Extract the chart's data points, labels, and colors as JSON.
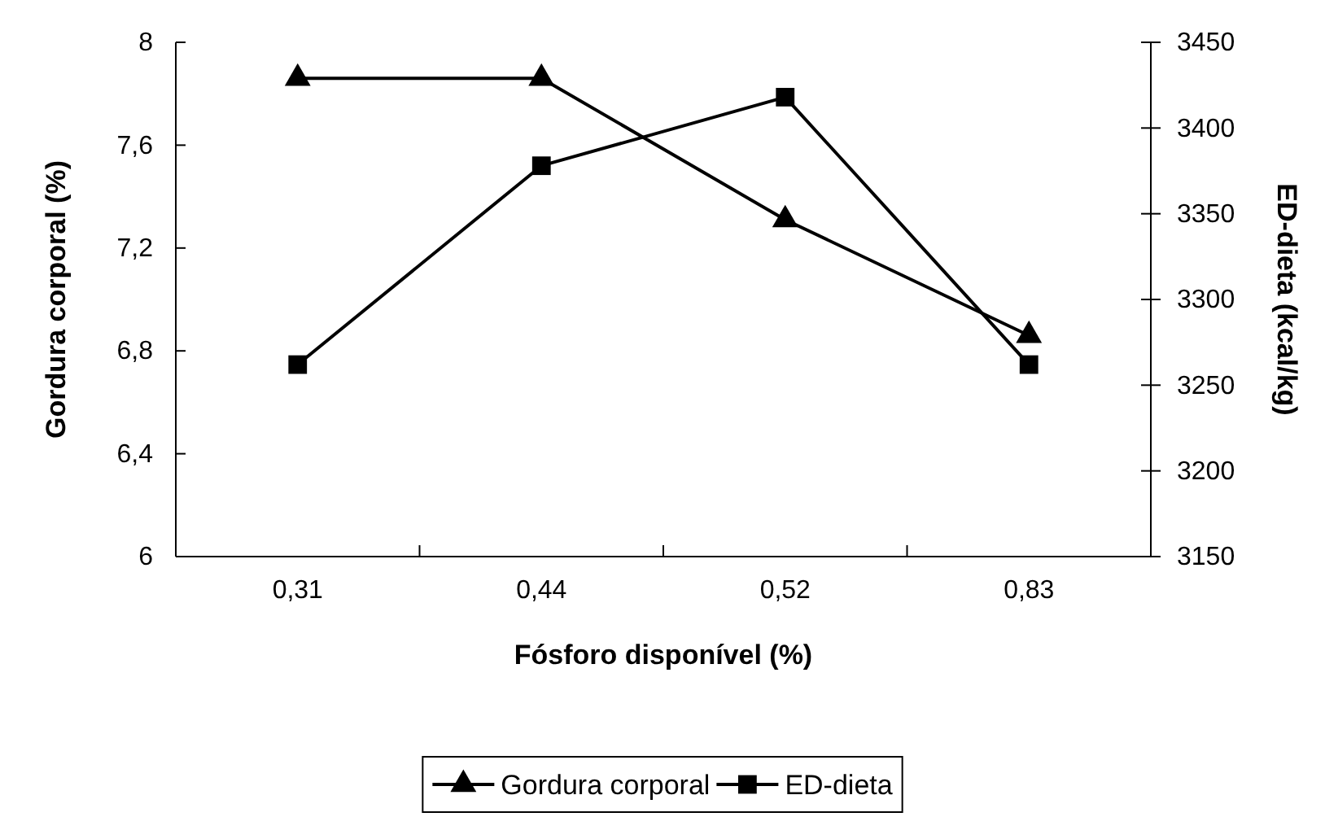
{
  "chart_data": {
    "type": "line",
    "xlabel": "Fósforo disponível (%)",
    "ylabel": "Gordura corporal (%)",
    "y2label": "ED-dieta (kcal/kg)",
    "categories": [
      "0,31",
      "0,44",
      "0,52",
      "0,83"
    ],
    "ylim": [
      6,
      8
    ],
    "yticks": [
      {
        "value": 6,
        "label": "6"
      },
      {
        "value": 6.4,
        "label": "6,4"
      },
      {
        "value": 6.8,
        "label": "6,8"
      },
      {
        "value": 7.2,
        "label": "7,2"
      },
      {
        "value": 7.6,
        "label": "7,6"
      },
      {
        "value": 8,
        "label": "8"
      }
    ],
    "y2lim": [
      3150,
      3450
    ],
    "y2ticks": [
      3150,
      3200,
      3250,
      3300,
      3350,
      3400,
      3450
    ],
    "series": [
      {
        "name": "Gordura corporal",
        "color": "#000000",
        "marker": "triangle",
        "values": [
          7.86,
          7.86,
          7.31,
          6.86
        ]
      },
      {
        "name": "ED-dieta",
        "color": "#000000",
        "marker": "square",
        "axis": "y2",
        "values": [
          3262,
          3378,
          3418,
          3262
        ]
      }
    ],
    "grid": false,
    "legend": "bottom",
    "line_style": "solid"
  }
}
